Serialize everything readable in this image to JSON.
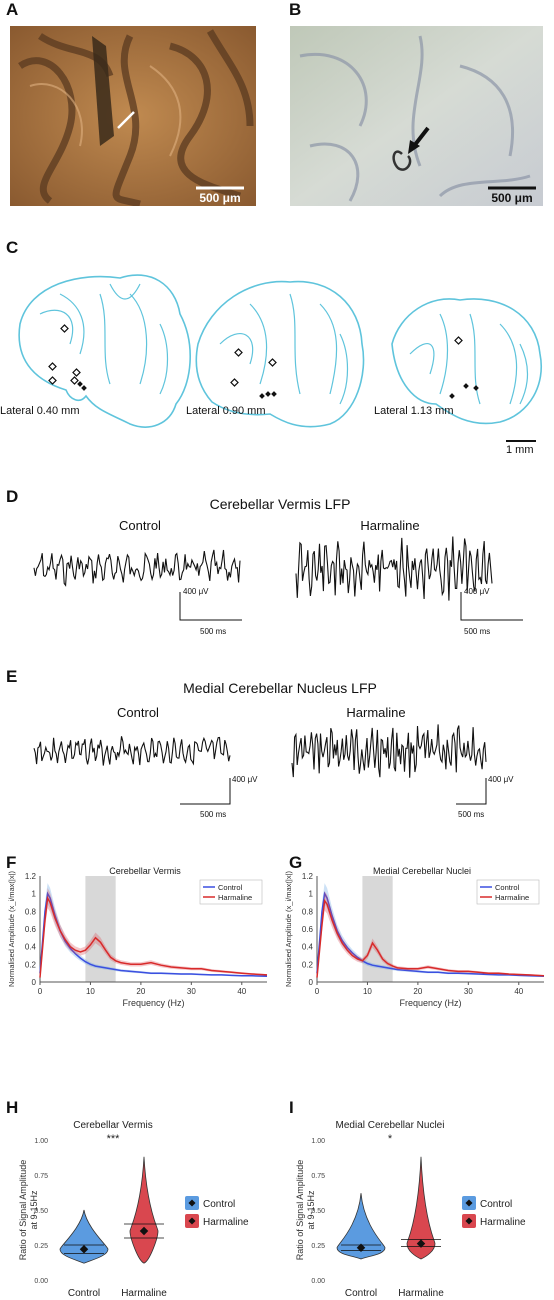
{
  "panels": {
    "A": {
      "label": "A",
      "scale_bar": "500 μm"
    },
    "B": {
      "label": "B",
      "scale_bar": "500 μm"
    },
    "C": {
      "label": "C",
      "sections": [
        "Lateral 0.40 mm",
        "Lateral 0.90 mm",
        "Lateral 1.13 mm"
      ],
      "scale_bar": "1 mm"
    },
    "D": {
      "label": "D",
      "title": "Cerebellar Vermis LFP",
      "left": "Control",
      "right": "Harmaline",
      "amp_bar": "400 μV",
      "time_bar": "500 ms"
    },
    "E": {
      "label": "E",
      "title": "Medial Cerebellar Nucleus LFP",
      "left": "Control",
      "right": "Harmaline",
      "amp_bar": "400 μV",
      "time_bar": "500 ms"
    },
    "F": {
      "label": "F"
    },
    "G": {
      "label": "G"
    },
    "H": {
      "label": "H"
    },
    "I": {
      "label": "I"
    }
  },
  "colors": {
    "control": "#3b4fe0",
    "harmaline": "#d82a2a",
    "control_fill": "#5b9be0",
    "harmaline_fill": "#d9474f",
    "shade": "#d8d8d8",
    "outline": "#5fc4dc"
  },
  "chart_data": [
    {
      "type": "line",
      "title": "Cerebellar Vermis",
      "xlabel": "Frequency (Hz)",
      "ylabel": "Normalised Amplitude (x_i/max(|x|)",
      "xlim": [
        0,
        45
      ],
      "ylim": [
        0,
        1.2
      ],
      "xticks": [
        0,
        10,
        20,
        30,
        40
      ],
      "yticks": [
        0,
        0.2,
        0.4,
        0.6,
        0.8,
        1,
        1.2
      ],
      "shaded_band": [
        9,
        15
      ],
      "legend": "top-right",
      "x": [
        0,
        1,
        1.5,
        2,
        3,
        4,
        5,
        6,
        7,
        8,
        9,
        10,
        11,
        12,
        13,
        14,
        15,
        16,
        18,
        20,
        22,
        24,
        26,
        28,
        30,
        32,
        34,
        36,
        38,
        40,
        42,
        45
      ],
      "series": [
        {
          "name": "Control",
          "values": [
            0.1,
            0.8,
            1.0,
            0.95,
            0.75,
            0.58,
            0.46,
            0.38,
            0.32,
            0.27,
            0.23,
            0.2,
            0.18,
            0.17,
            0.16,
            0.15,
            0.14,
            0.13,
            0.12,
            0.11,
            0.1,
            0.1,
            0.095,
            0.09,
            0.09,
            0.085,
            0.08,
            0.08,
            0.075,
            0.07,
            0.07,
            0.065
          ]
        },
        {
          "name": "Harmaline",
          "values": [
            0.05,
            0.7,
            0.95,
            0.9,
            0.72,
            0.58,
            0.48,
            0.4,
            0.36,
            0.34,
            0.36,
            0.42,
            0.5,
            0.45,
            0.36,
            0.28,
            0.24,
            0.22,
            0.2,
            0.2,
            0.22,
            0.19,
            0.17,
            0.16,
            0.15,
            0.15,
            0.13,
            0.12,
            0.11,
            0.1,
            0.09,
            0.08
          ]
        }
      ]
    },
    {
      "type": "line",
      "title": "Medial Cerebellar Nuclei",
      "xlabel": "Frequency (Hz)",
      "ylabel": "Normalised Amplitude (x_i/max(|x|)",
      "xlim": [
        0,
        45
      ],
      "ylim": [
        0,
        1.2
      ],
      "xticks": [
        0,
        10,
        20,
        30,
        40
      ],
      "yticks": [
        0,
        0.2,
        0.4,
        0.6,
        0.8,
        1,
        1.2
      ],
      "shaded_band": [
        9,
        15
      ],
      "legend": "top-right",
      "x": [
        0,
        1,
        1.5,
        2,
        3,
        4,
        5,
        6,
        7,
        8,
        9,
        10,
        11,
        12,
        13,
        14,
        15,
        16,
        18,
        20,
        22,
        24,
        26,
        28,
        30,
        32,
        34,
        36,
        38,
        40,
        42,
        45
      ],
      "series": [
        {
          "name": "Control",
          "values": [
            0.1,
            0.8,
            1.0,
            0.95,
            0.75,
            0.58,
            0.47,
            0.39,
            0.33,
            0.28,
            0.24,
            0.21,
            0.19,
            0.18,
            0.17,
            0.16,
            0.15,
            0.14,
            0.13,
            0.12,
            0.11,
            0.11,
            0.1,
            0.1,
            0.095,
            0.09,
            0.085,
            0.08,
            0.08,
            0.075,
            0.07,
            0.065
          ]
        },
        {
          "name": "Harmaline",
          "values": [
            0.05,
            0.65,
            0.92,
            0.88,
            0.7,
            0.55,
            0.44,
            0.36,
            0.3,
            0.26,
            0.24,
            0.3,
            0.44,
            0.36,
            0.26,
            0.21,
            0.18,
            0.16,
            0.15,
            0.15,
            0.17,
            0.15,
            0.13,
            0.12,
            0.12,
            0.11,
            0.1,
            0.1,
            0.09,
            0.085,
            0.08,
            0.07
          ]
        }
      ]
    },
    {
      "type": "violin",
      "title": "Cerebellar Vermis",
      "ylabel": "Ratio of Signal Amplitude at 9-15Hz",
      "categories": [
        "Control",
        "Harmaline"
      ],
      "ylim": [
        0,
        1.0
      ],
      "yticks": [
        "0.00",
        "0.25",
        "0.50",
        "0.75",
        "1.00"
      ],
      "significance": "***",
      "means": [
        0.22,
        0.35
      ],
      "ci": [
        [
          0.19,
          0.25
        ],
        [
          0.3,
          0.4
        ]
      ],
      "ranges": [
        [
          0.12,
          0.5
        ],
        [
          0.12,
          0.88
        ]
      ],
      "legend": [
        "Control",
        "Harmaline"
      ]
    },
    {
      "type": "violin",
      "title": "Medial Cerebellar Nuclei",
      "ylabel": "Ratio of Signal Amplitude at 9-15Hz",
      "categories": [
        "Control",
        "Harmaline"
      ],
      "ylim": [
        0,
        1.0
      ],
      "yticks": [
        "0.00",
        "0.25",
        "0.50",
        "0.75",
        "1.00"
      ],
      "significance": "*",
      "means": [
        0.23,
        0.26
      ],
      "ci": [
        [
          0.21,
          0.25
        ],
        [
          0.24,
          0.29
        ]
      ],
      "ranges": [
        [
          0.15,
          0.62
        ],
        [
          0.15,
          0.88
        ]
      ],
      "legend": [
        "Control",
        "Harmaline"
      ]
    }
  ]
}
